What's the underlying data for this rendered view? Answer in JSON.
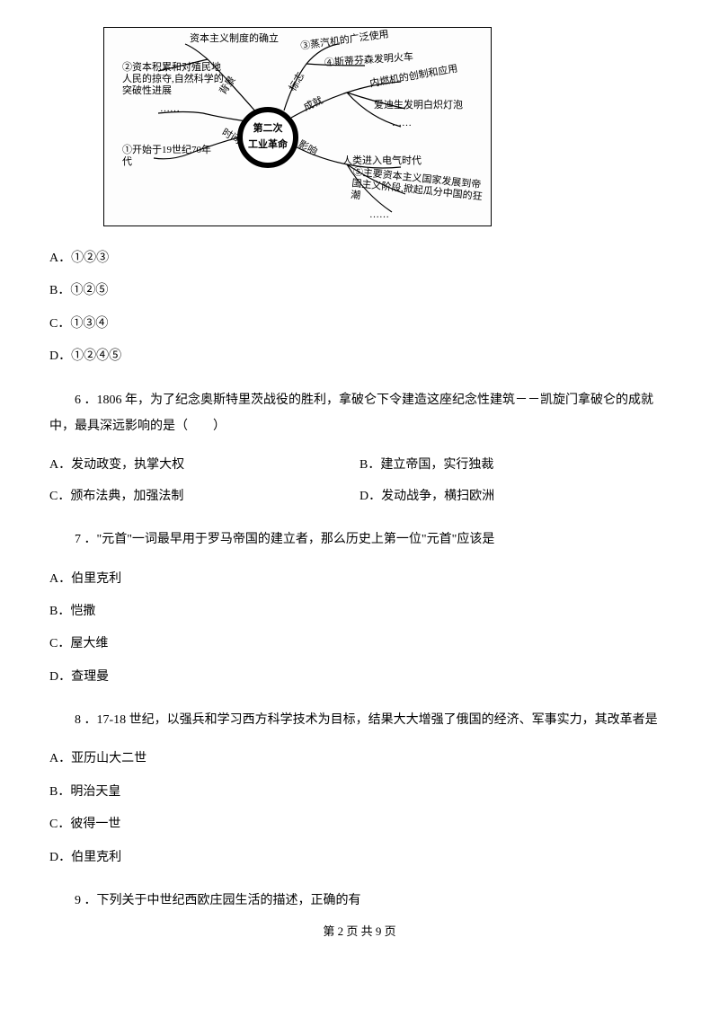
{
  "diagram": {
    "center": "第二次\n工业革命",
    "branches": {
      "bg_label": "背景",
      "time_label": "时间",
      "mark_label": "标志",
      "result_label": "成就",
      "impact_label": "影响"
    },
    "nodes": {
      "top": "资本主义制度的确立",
      "n2": "②资本积累和对殖民地人民的掠夺,自然科学的突破性进展",
      "n1": "①开始于19世纪70年代",
      "n3": "③蒸汽机的广泛使用",
      "n4": "④斯蒂芬森发明火车",
      "r1": "内燃机的创制和应用",
      "r2": "爱迪生发明白炽灯泡",
      "i1": "人类进入电气时代",
      "n5": "⑤主要资本主义国家发展到帝国主义阶段,掀起瓜分中国的狂潮"
    }
  },
  "q5": {
    "optA": "A．①②③",
    "optB": "B．①②⑤",
    "optC": "C．①③④",
    "optD": "D．①②④⑤"
  },
  "q6": {
    "text": "6 ．1806 年，为了纪念奥斯特里茨战役的胜利，拿破仑下令建造这座纪念性建筑－－凯旋门拿破仑的成就中，最具深远影响的是（　　）",
    "optA": "A．发动政变，执掌大权",
    "optB": "B．建立帝国，实行独裁",
    "optC": "C．颁布法典，加强法制",
    "optD": "D．发动战争，横扫欧洲"
  },
  "q7": {
    "text": "7 ．\"元首\"一词最早用于罗马帝国的建立者，那么历史上第一位\"元首\"应该是",
    "optA": "A．伯里克利",
    "optB": "B．恺撒",
    "optC": "C．屋大维",
    "optD": "D．查理曼"
  },
  "q8": {
    "text": "8 ．17-18 世纪，以强兵和学习西方科学技术为目标，结果大大增强了俄国的经济、军事实力，其改革者是",
    "optA": "A．亚历山大二世",
    "optB": "B．明治天皇",
    "optC": "C．彼得一世",
    "optD": "D．伯里克利"
  },
  "q9": {
    "text": "9 ．下列关于中世纪西欧庄园生活的描述，正确的有"
  },
  "footer": "第 2 页 共 9 页"
}
